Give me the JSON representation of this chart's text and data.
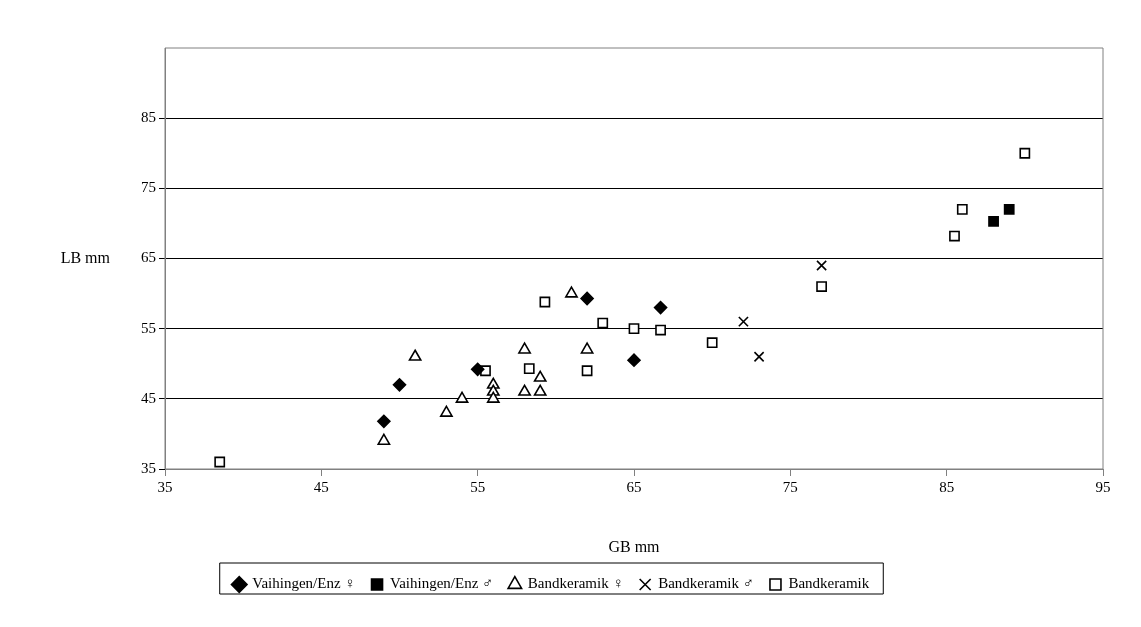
{
  "chart_data": {
    "type": "scatter",
    "xlabel": "GB mm",
    "ylabel": "LB mm",
    "xlim": [
      35,
      95
    ],
    "xticks": [
      35,
      45,
      55,
      65,
      75,
      85,
      95
    ],
    "ylim": [
      35,
      95
    ],
    "yticks": [
      35,
      45,
      55,
      65,
      75,
      85
    ],
    "grid": "y",
    "legend": "bottom",
    "series": [
      {
        "name": "Vaihingen/Enz ♀",
        "color": "#000000",
        "marker": "diamond",
        "x": [
          49,
          50,
          55,
          62,
          65,
          66.7
        ],
        "values": [
          41.8,
          47,
          49.2,
          59.3,
          50.5,
          58
        ]
      },
      {
        "name": "Vaihingen/Enz ♂",
        "color": "#000000",
        "marker": "square",
        "x": [
          88,
          89
        ],
        "values": [
          70.3,
          72
        ]
      },
      {
        "name": "Bandkeramik ♀",
        "color": "#000000",
        "marker": "triangle",
        "x": [
          49,
          51,
          53,
          54,
          56,
          56,
          56,
          58,
          58,
          59,
          59,
          61,
          62
        ],
        "values": [
          39,
          51,
          43,
          45,
          47,
          46,
          45,
          52,
          46,
          48,
          46,
          60,
          52
        ]
      },
      {
        "name": "Bandkeramik ♂",
        "color": "#000000",
        "marker": "cross",
        "x": [
          72,
          73,
          77
        ],
        "values": [
          56,
          51,
          64
        ]
      },
      {
        "name": "Bandkeramik",
        "color": "#000000",
        "marker": "square",
        "x": [
          38.5,
          55.5,
          58.3,
          59.3,
          62,
          63,
          65,
          66.7,
          70,
          77,
          85.5,
          86,
          90
        ],
        "values": [
          36,
          49,
          49.3,
          58.8,
          49,
          55.8,
          55,
          54.8,
          53,
          61,
          68.2,
          72,
          80
        ]
      }
    ]
  }
}
